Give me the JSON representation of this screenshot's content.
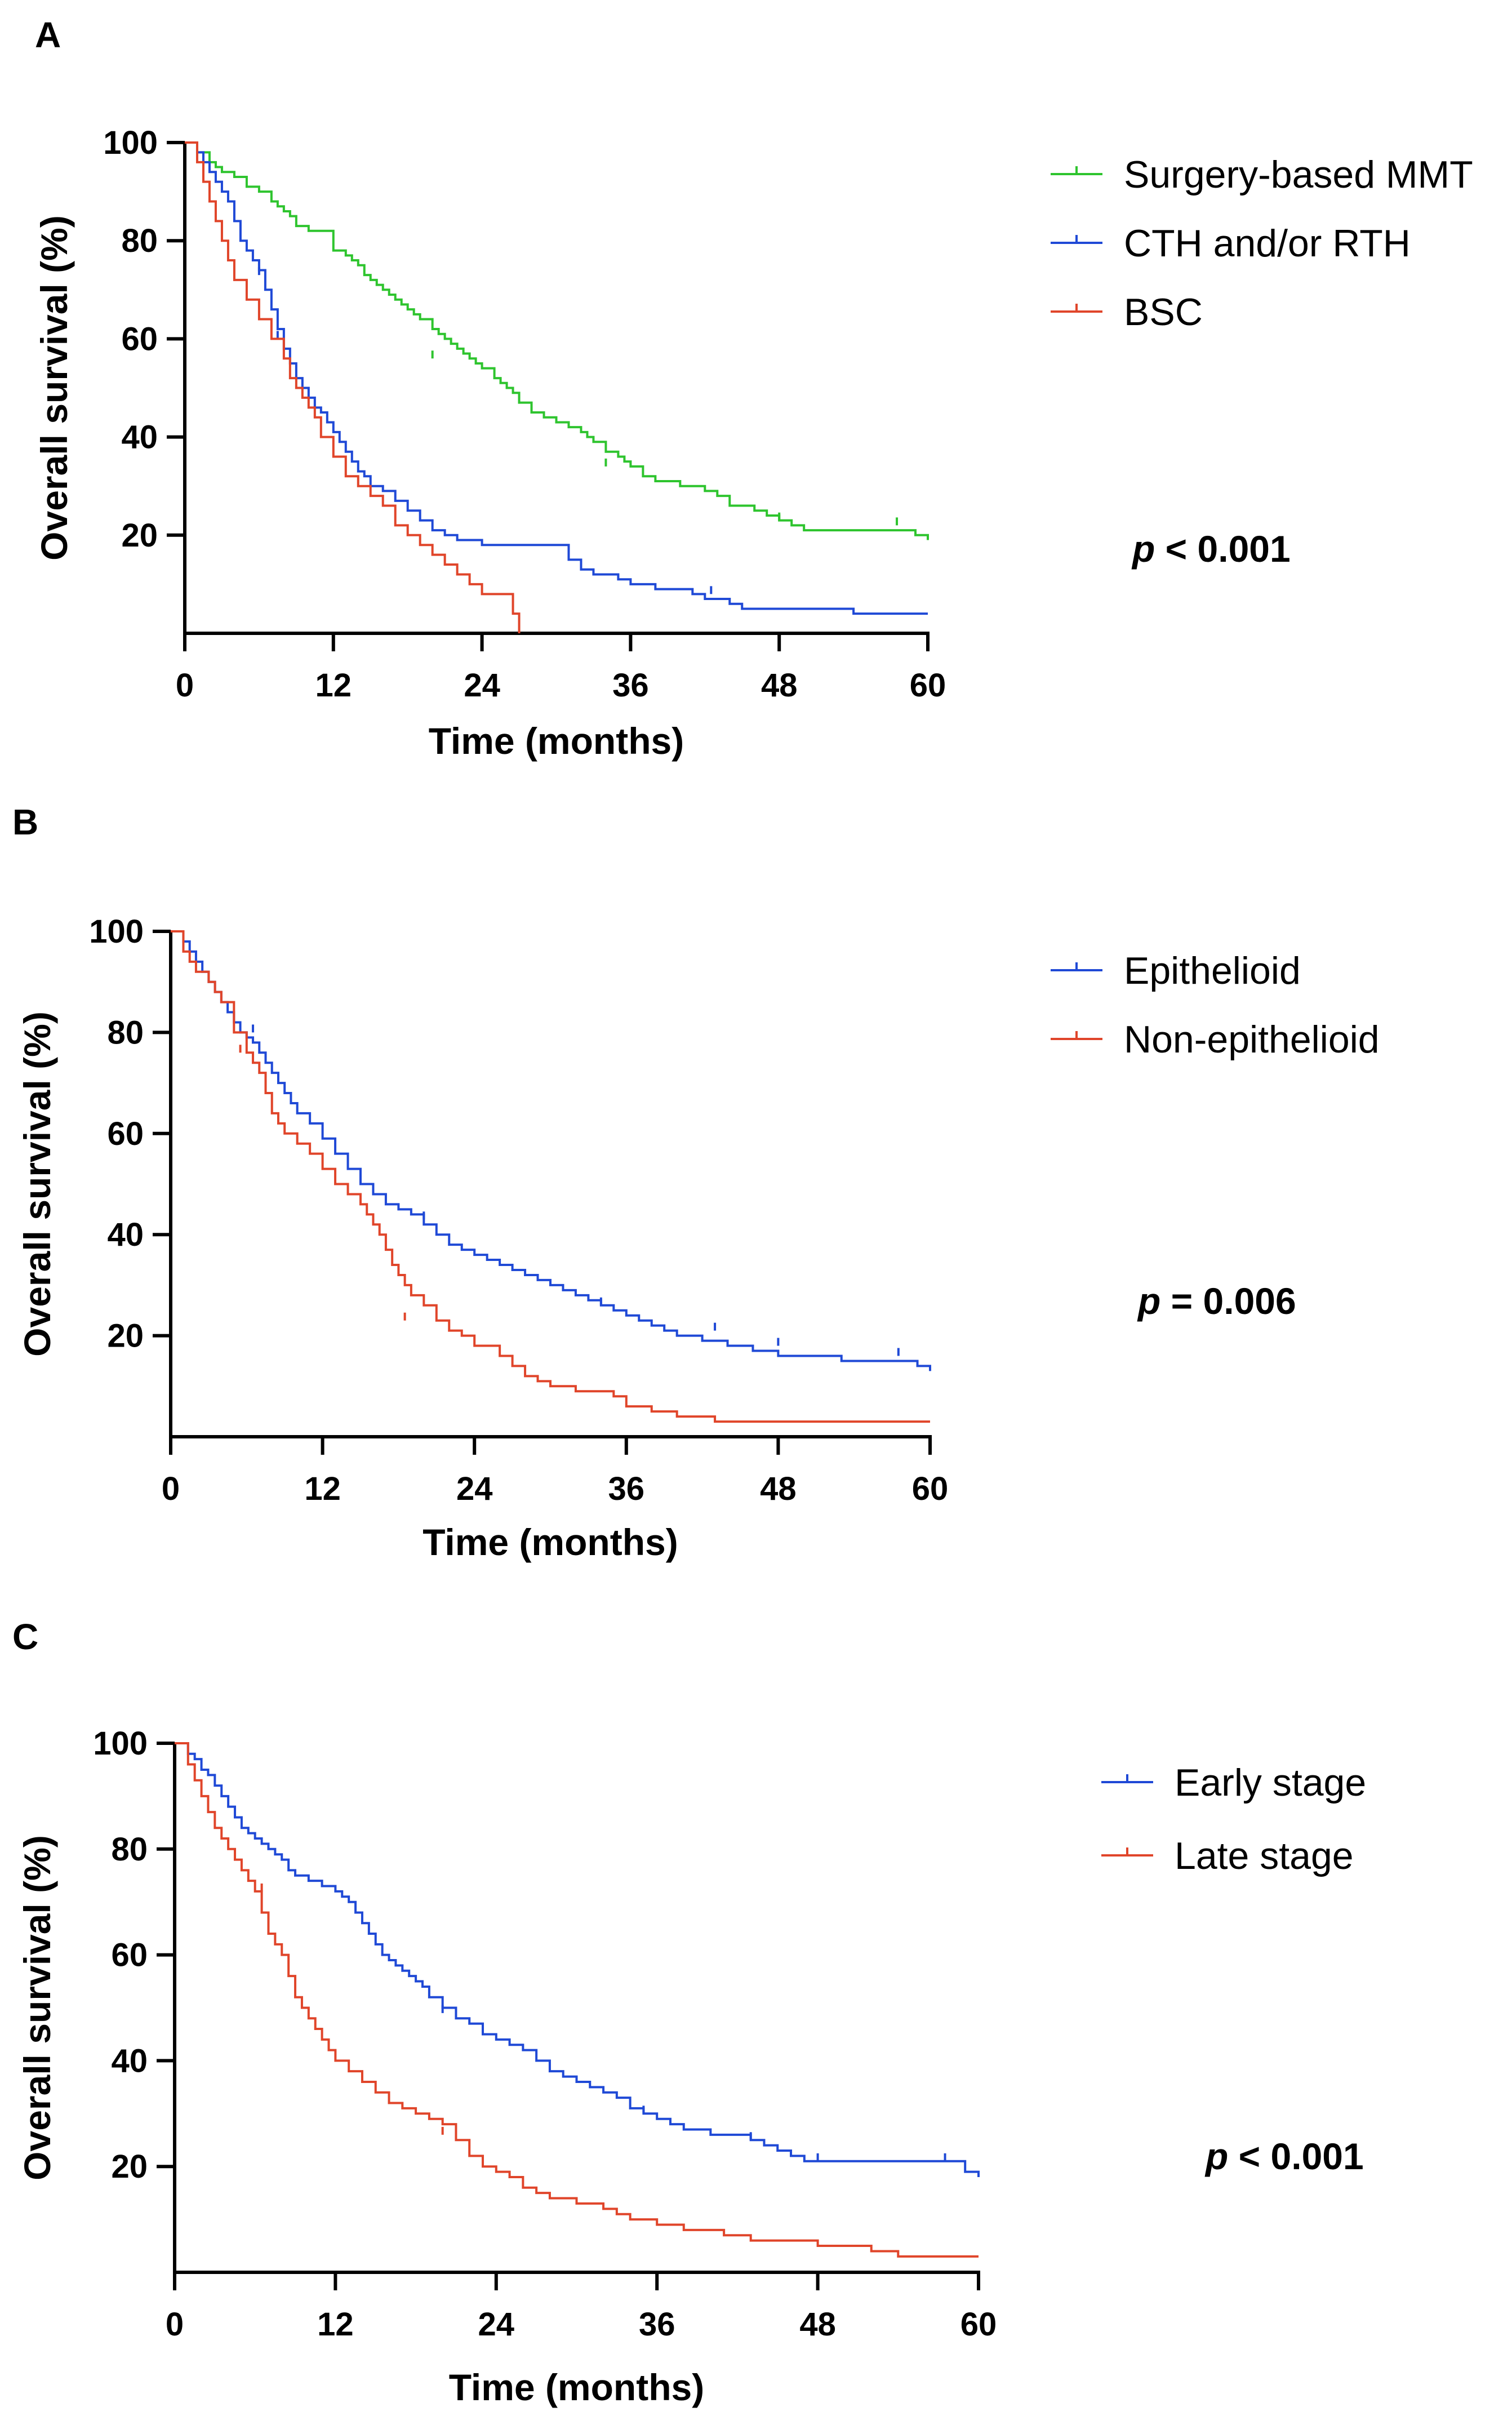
{
  "chart_data": [
    {
      "type": "line",
      "panel_label": "A",
      "title": "",
      "xlabel": "Time (months)",
      "ylabel": "Overall survival (%)",
      "xlim": [
        0,
        60
      ],
      "ylim": [
        0,
        100
      ],
      "xticks": [
        0,
        12,
        24,
        36,
        48,
        60
      ],
      "yticks": [
        20,
        40,
        60,
        80,
        100
      ],
      "xtick_labels": [
        "0",
        "12",
        "24",
        "36",
        "48",
        "60"
      ],
      "ytick_labels": [
        "20",
        "40",
        "60",
        "80",
        "100"
      ],
      "grid": false,
      "legend_position": "top-right",
      "annotation": {
        "p_symbol": "p",
        "text": " < 0.001"
      },
      "series": [
        {
          "name": "Surgery-based MMT",
          "color": "#2ec42e",
          "x": [
            0,
            1,
            2,
            2.5,
            3,
            4,
            5,
            6,
            7,
            7.5,
            8,
            8.5,
            9,
            10,
            12,
            13,
            13.5,
            14,
            14.5,
            15,
            15.5,
            16,
            16.5,
            17,
            17.5,
            18,
            18.5,
            19,
            20,
            20.5,
            21,
            21.5,
            22,
            22.5,
            23,
            23.5,
            24,
            25,
            25.5,
            26,
            26.5,
            27,
            28,
            29,
            30,
            31,
            32,
            32.5,
            33,
            34,
            35,
            35.5,
            36,
            37,
            38,
            40,
            42,
            43,
            44,
            46,
            47,
            48,
            49,
            50,
            52,
            55,
            56,
            58,
            59,
            60
          ],
          "y": [
            100,
            98,
            96,
            95,
            94,
            93,
            91,
            90,
            88,
            87,
            86,
            85,
            83,
            82,
            78,
            77,
            76,
            75,
            73,
            72,
            71,
            70,
            69,
            68,
            67,
            66,
            65,
            64,
            62,
            61,
            60,
            59,
            58,
            57,
            56,
            55,
            54,
            52,
            51,
            50,
            49,
            47,
            45,
            44,
            43,
            42,
            41,
            40,
            39,
            37,
            36,
            35,
            34,
            32,
            31,
            30,
            29,
            28,
            26,
            25,
            24,
            23,
            22,
            21,
            21,
            21,
            21,
            21,
            20,
            19
          ],
          "censors": [
            [
              20,
              56
            ],
            [
              34,
              34
            ],
            [
              48,
              23
            ],
            [
              57.5,
              22
            ]
          ]
        },
        {
          "name": "CTH and/or RTH",
          "color": "#1f49d6",
          "x": [
            0,
            1,
            1.5,
            2,
            2.5,
            3,
            3.5,
            4,
            4.5,
            5,
            5.5,
            6,
            6.5,
            7,
            7.5,
            8,
            8.5,
            9,
            9.5,
            10,
            10.5,
            11,
            11.5,
            12,
            12.5,
            13,
            13.5,
            14,
            14.5,
            15,
            16,
            17,
            18,
            19,
            20,
            21,
            22,
            23,
            24,
            25,
            30,
            31,
            32,
            33,
            34,
            35,
            36,
            38,
            41,
            42,
            43,
            44,
            45,
            53,
            54,
            60
          ],
          "y": [
            100,
            98,
            96,
            94,
            92,
            90,
            88,
            84,
            80,
            78,
            76,
            74,
            70,
            66,
            62,
            58,
            55,
            52,
            50,
            48,
            46,
            45,
            43,
            41,
            39,
            37,
            35,
            33,
            32,
            30,
            29,
            27,
            25,
            23,
            21,
            20,
            19,
            19,
            18,
            18,
            18,
            15,
            13,
            12,
            12,
            11,
            10,
            9,
            8,
            7,
            7,
            6,
            5,
            5,
            4,
            4
          ],
          "censors": [
            [
              6,
              73
            ],
            [
              7.5,
              60
            ],
            [
              42.5,
              8
            ]
          ]
        },
        {
          "name": "BSC",
          "color": "#e0452a",
          "x": [
            0,
            1,
            1.5,
            2,
            2.5,
            3,
            3.5,
            4,
            5,
            6,
            7,
            8,
            8.5,
            9,
            9.5,
            10,
            10.5,
            11,
            12,
            13,
            14,
            15,
            16,
            17,
            18,
            19,
            20,
            21,
            22,
            23,
            24,
            25,
            26,
            26.5,
            27
          ],
          "y": [
            100,
            96,
            92,
            88,
            84,
            80,
            76,
            72,
            68,
            64,
            60,
            56,
            52,
            50,
            48,
            46,
            44,
            40,
            36,
            32,
            30,
            28,
            26,
            22,
            20,
            18,
            16,
            14,
            12,
            10,
            8,
            8,
            8,
            4,
            0
          ],
          "censors": []
        }
      ]
    },
    {
      "type": "line",
      "panel_label": "B",
      "title": "",
      "xlabel": "Time (months)",
      "ylabel": "Overall survival (%)",
      "xlim": [
        0,
        60
      ],
      "ylim": [
        0,
        100
      ],
      "xticks": [
        0,
        12,
        24,
        36,
        48,
        60
      ],
      "yticks": [
        20,
        40,
        60,
        80,
        100
      ],
      "xtick_labels": [
        "0",
        "12",
        "24",
        "36",
        "48",
        "60"
      ],
      "ytick_labels": [
        "20",
        "40",
        "60",
        "80",
        "100"
      ],
      "grid": false,
      "legend_position": "top-right",
      "annotation": {
        "p_symbol": "p",
        "text": " = 0.006"
      },
      "series": [
        {
          "name": "Epithelioid",
          "color": "#1f49d6",
          "x": [
            0,
            1,
            1.5,
            2,
            2.5,
            3,
            3.5,
            4,
            4.5,
            5,
            5.5,
            6,
            6.5,
            7,
            7.5,
            8,
            8.5,
            9,
            9.5,
            10,
            11,
            12,
            13,
            14,
            15,
            16,
            17,
            18,
            19,
            20,
            21,
            22,
            23,
            24,
            25,
            26,
            27,
            28,
            29,
            30,
            31,
            32,
            33,
            34,
            35,
            36,
            37,
            38,
            39,
            40,
            41,
            42,
            43,
            44,
            45,
            46,
            47,
            48,
            50,
            52,
            53,
            54,
            55,
            56,
            57,
            58,
            59,
            60
          ],
          "y": [
            100,
            98,
            96,
            94,
            92,
            90,
            88,
            86,
            84,
            82,
            80,
            79,
            78,
            76,
            74,
            72,
            70,
            68,
            66,
            64,
            62,
            59,
            56,
            53,
            50,
            48,
            46,
            45,
            44,
            42,
            40,
            38,
            37,
            36,
            35,
            34,
            33,
            32,
            31,
            30,
            29,
            28,
            27,
            26,
            25,
            24,
            23,
            22,
            21,
            20,
            20,
            19,
            19,
            18,
            18,
            17,
            17,
            16,
            16,
            16,
            15,
            15,
            15,
            15,
            15,
            15,
            14,
            13
          ],
          "censors": [
            [
              6.5,
              80
            ],
            [
              7.5,
              74
            ],
            [
              20,
              43
            ],
            [
              34,
              26
            ],
            [
              43,
              21
            ],
            [
              48,
              18
            ],
            [
              57.5,
              16
            ]
          ]
        },
        {
          "name": "Non-epithelioid",
          "color": "#e0452a",
          "x": [
            0,
            1,
            1.5,
            2,
            3,
            3.5,
            4,
            5,
            6,
            6.5,
            7,
            7.5,
            8,
            8.5,
            9,
            10,
            11,
            12,
            13,
            14,
            15,
            15.5,
            16,
            16.5,
            17,
            17.5,
            18,
            18.5,
            19,
            20,
            21,
            22,
            23,
            24,
            25,
            26,
            27,
            28,
            29,
            30,
            32,
            34,
            35,
            36,
            38,
            40,
            42,
            43,
            44,
            46,
            48,
            50,
            52,
            54,
            56,
            58,
            60
          ],
          "y": [
            100,
            96,
            94,
            92,
            90,
            88,
            86,
            80,
            76,
            74,
            72,
            68,
            64,
            62,
            60,
            58,
            56,
            53,
            50,
            48,
            46,
            44,
            42,
            40,
            37,
            34,
            32,
            30,
            28,
            26,
            23,
            21,
            20,
            18,
            18,
            16,
            14,
            12,
            11,
            10,
            9,
            9,
            8,
            6,
            5,
            4,
            4,
            3,
            3,
            3,
            3,
            3,
            3,
            3,
            3,
            3,
            3
          ],
          "censors": [
            [
              5.5,
              76
            ],
            [
              18.5,
              23
            ]
          ]
        }
      ]
    },
    {
      "type": "line",
      "panel_label": "C",
      "title": "",
      "xlabel": "Time (months)",
      "ylabel": "Overall survival (%)",
      "xlim": [
        0,
        60
      ],
      "ylim": [
        0,
        100
      ],
      "xticks": [
        0,
        12,
        24,
        36,
        48,
        60
      ],
      "yticks": [
        20,
        40,
        60,
        80,
        100
      ],
      "xtick_labels": [
        "0",
        "12",
        "24",
        "36",
        "48",
        "60"
      ],
      "ytick_labels": [
        "20",
        "40",
        "60",
        "80",
        "100"
      ],
      "grid": false,
      "legend_position": "top-right",
      "annotation": {
        "p_symbol": "p",
        "text": " < 0.001"
      },
      "series": [
        {
          "name": "Early stage",
          "color": "#1f49d6",
          "x": [
            0,
            1,
            1.5,
            2,
            2.5,
            3,
            3.5,
            4,
            4.5,
            5,
            5.5,
            6,
            6.5,
            7,
            7.5,
            8,
            8.5,
            9,
            10,
            11,
            12,
            12.5,
            13,
            13.5,
            14,
            14.5,
            15,
            15.5,
            16,
            16.5,
            17,
            17.5,
            18,
            18.5,
            19,
            20,
            21,
            22,
            23,
            24,
            25,
            26,
            27,
            28,
            29,
            30,
            31,
            32,
            33,
            34,
            35,
            36,
            37,
            38,
            40,
            42,
            43,
            44,
            45,
            46,
            47,
            48,
            50,
            52,
            55,
            56,
            58,
            59,
            60
          ],
          "y": [
            100,
            98,
            97,
            95,
            94,
            92,
            90,
            88,
            86,
            84,
            83,
            82,
            81,
            80,
            79,
            78,
            76,
            75,
            74,
            73,
            72,
            71,
            70,
            68,
            66,
            64,
            62,
            60,
            59,
            58,
            57,
            56,
            55,
            54,
            52,
            50,
            48,
            47,
            45,
            44,
            43,
            42,
            40,
            38,
            37,
            36,
            35,
            34,
            33,
            31,
            30,
            29,
            28,
            27,
            26,
            26,
            25,
            24,
            23,
            22,
            21,
            21,
            21,
            21,
            21,
            21,
            21,
            19,
            18
          ],
          "censors": [
            [
              20,
              49
            ],
            [
              35,
              30
            ],
            [
              43,
              25
            ],
            [
              48,
              21
            ],
            [
              57.5,
              21
            ]
          ]
        },
        {
          "name": "Late stage",
          "color": "#e0452a",
          "x": [
            0,
            1,
            1.5,
            2,
            2.5,
            3,
            3.5,
            4,
            4.5,
            5,
            5.5,
            6,
            6.5,
            7,
            7.5,
            8,
            8.5,
            9,
            9.5,
            10,
            10.5,
            11,
            11.5,
            12,
            13,
            14,
            15,
            16,
            17,
            18,
            19,
            20,
            21,
            22,
            23,
            24,
            25,
            26,
            27,
            28,
            30,
            32,
            33,
            34,
            35,
            36,
            38,
            40,
            41,
            42,
            43,
            44,
            45,
            46,
            47,
            48,
            50,
            52,
            53,
            54,
            55,
            56,
            57,
            58,
            60
          ],
          "y": [
            100,
            96,
            93,
            90,
            87,
            84,
            82,
            80,
            78,
            76,
            74,
            72,
            68,
            64,
            62,
            60,
            56,
            52,
            50,
            48,
            46,
            44,
            42,
            40,
            38,
            36,
            34,
            32,
            31,
            30,
            29,
            28,
            25,
            22,
            20,
            19,
            18,
            16,
            15,
            14,
            13,
            12,
            11,
            10,
            10,
            9,
            8,
            8,
            7,
            7,
            6,
            6,
            6,
            6,
            6,
            5,
            5,
            4,
            4,
            3,
            3,
            3,
            3,
            3,
            3
          ],
          "censors": [
            [
              6.5,
              72
            ],
            [
              20,
              26
            ]
          ]
        }
      ]
    }
  ]
}
